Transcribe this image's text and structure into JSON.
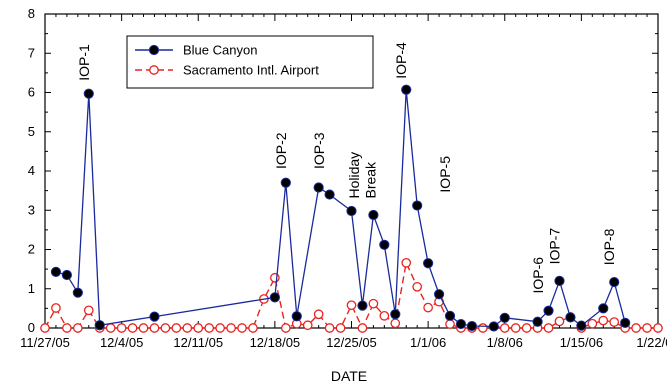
{
  "chart_data": {
    "type": "line",
    "title": "",
    "xlabel": "DATE",
    "ylabel": "",
    "xlim": [
      0,
      56
    ],
    "ylim": [
      0,
      8
    ],
    "grid": false,
    "legend_position": "top-left",
    "x_ticks": [
      {
        "x": 0,
        "label": "11/27/05"
      },
      {
        "x": 7,
        "label": "12/4/05"
      },
      {
        "x": 14,
        "label": "12/11/05"
      },
      {
        "x": 21,
        "label": "12/18/05"
      },
      {
        "x": 28,
        "label": "12/25/05"
      },
      {
        "x": 35,
        "label": "1/1/06"
      },
      {
        "x": 42,
        "label": "1/8/06"
      },
      {
        "x": 49,
        "label": "1/15/06"
      },
      {
        "x": 56,
        "label": "1/22/06"
      }
    ],
    "y_ticks": [
      0,
      1,
      2,
      3,
      4,
      5,
      6,
      7,
      8
    ],
    "series": [
      {
        "name": "Blue Canyon",
        "color": "#1a2a9c",
        "marker": "filled-circle",
        "line": "solid",
        "x": [
          1,
          2,
          3,
          4,
          5,
          10,
          21,
          22,
          23,
          25,
          26,
          28,
          29,
          30,
          31,
          32,
          33,
          34,
          35,
          36,
          37,
          38,
          39,
          41,
          42,
          45,
          46,
          47,
          48,
          49,
          51,
          52,
          53
        ],
        "y": [
          1.43,
          1.35,
          0.9,
          5.97,
          0.07,
          0.29,
          0.78,
          3.7,
          0.3,
          3.58,
          3.4,
          2.98,
          0.57,
          2.88,
          2.12,
          0.35,
          6.07,
          3.12,
          1.65,
          0.86,
          0.31,
          0.1,
          0.05,
          0.04,
          0.26,
          0.16,
          0.44,
          1.2,
          0.27,
          0.06,
          0.5,
          1.17,
          0.13
        ]
      },
      {
        "name": "Sacramento Intl. Airport",
        "color": "#e8231f",
        "marker": "open-circle",
        "line": "dashed",
        "x": [
          0,
          1,
          2,
          3,
          4,
          5,
          6,
          7,
          8,
          9,
          10,
          11,
          12,
          13,
          14,
          15,
          16,
          17,
          18,
          19,
          20,
          21,
          22,
          23,
          24,
          25,
          26,
          27,
          28,
          29,
          30,
          31,
          32,
          33,
          34,
          35,
          36,
          37,
          38,
          39,
          40,
          41,
          42,
          43,
          44,
          45,
          46,
          47,
          48,
          49,
          50,
          51,
          52,
          53,
          54,
          55,
          56
        ],
        "y": [
          0,
          0.51,
          0,
          0,
          0.45,
          0,
          0,
          0,
          0,
          0,
          0,
          0,
          0,
          0,
          0,
          0,
          0,
          0,
          0,
          0,
          0.74,
          1.28,
          0,
          0.11,
          0.07,
          0.35,
          0,
          0,
          0.58,
          0,
          0.62,
          0.31,
          0.12,
          1.66,
          1.05,
          0.52,
          0.67,
          0.1,
          0,
          0,
          0,
          0.04,
          0,
          0,
          0,
          0,
          0,
          0.17,
          0.28,
          0,
          0.11,
          0.19,
          0.15,
          0,
          0,
          0,
          0
        ]
      }
    ],
    "annotations": [
      {
        "text": "IOP-1",
        "x": 4,
        "y": 6.3
      },
      {
        "text": "IOP-2",
        "x": 22,
        "y": 4.05
      },
      {
        "text": "IOP-3",
        "x": 25.5,
        "y": 4.05
      },
      {
        "text": "Holiday",
        "x": 28.7,
        "y": 3.3
      },
      {
        "text": "Break",
        "x": 30.2,
        "y": 3.3
      },
      {
        "text": "IOP-4",
        "x": 33,
        "y": 6.35
      },
      {
        "text": "IOP-5",
        "x": 37,
        "y": 3.45
      },
      {
        "text": "IOP-6",
        "x": 45.5,
        "y": 0.88
      },
      {
        "text": "IOP-7",
        "x": 47,
        "y": 1.62
      },
      {
        "text": "IOP-8",
        "x": 52,
        "y": 1.6
      }
    ]
  }
}
